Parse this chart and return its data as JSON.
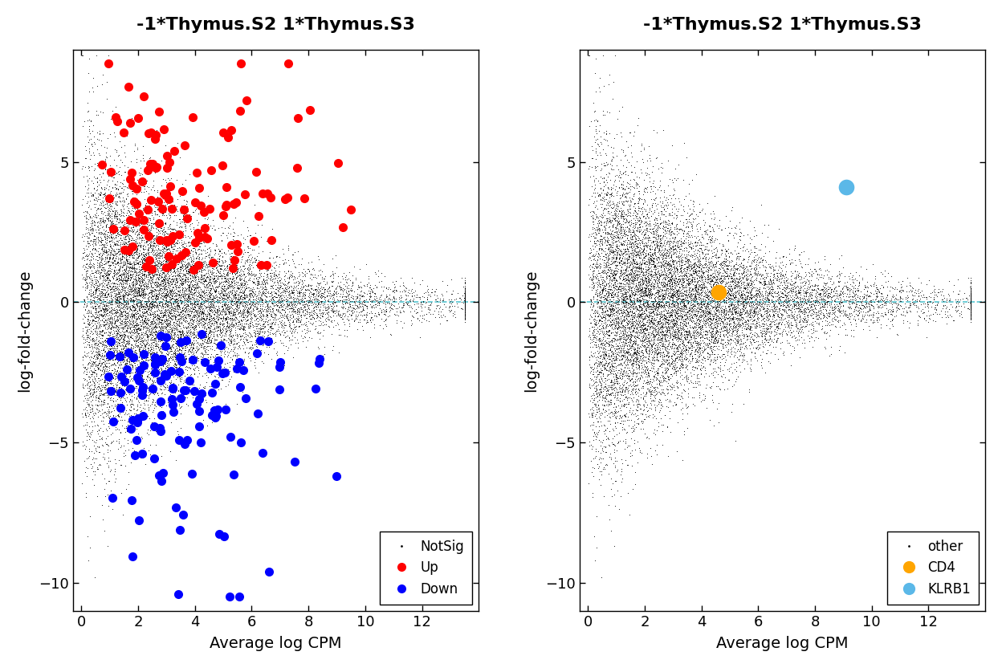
{
  "title": "-1*Thymus.S2 1*Thymus.S3",
  "xlabel": "Average log CPM",
  "ylabel": "log-fold-change",
  "xlim": [
    -0.3,
    14
  ],
  "ylim": [
    -11,
    9
  ],
  "yticks": [
    -10,
    -5,
    0,
    5
  ],
  "xticks": [
    0,
    2,
    4,
    6,
    8,
    10,
    12
  ],
  "dashed_line_color": "#56C5D0",
  "background_color": "#ffffff",
  "left_plot": {
    "notsig_color": "#000000",
    "up_color": "#FF0000",
    "down_color": "#0000FF",
    "notsig_size": 1.5,
    "sig_size": 64,
    "legend_labels": [
      "NotSig",
      "Up",
      "Down"
    ]
  },
  "right_plot": {
    "other_color": "#000000",
    "cd4_color": "#FFA500",
    "klrb1_color": "#5BB8E8",
    "other_size": 1.5,
    "cd4_size": 200,
    "klrb1_size": 200,
    "cd4_x": 4.6,
    "cd4_y": 0.35,
    "klrb1_x": 9.1,
    "klrb1_y": 4.1,
    "legend_labels": [
      "other",
      "CD4",
      "KLRB1"
    ]
  },
  "seed": 42,
  "n_notsig": 14000,
  "n_up": 130,
  "n_down": 130
}
